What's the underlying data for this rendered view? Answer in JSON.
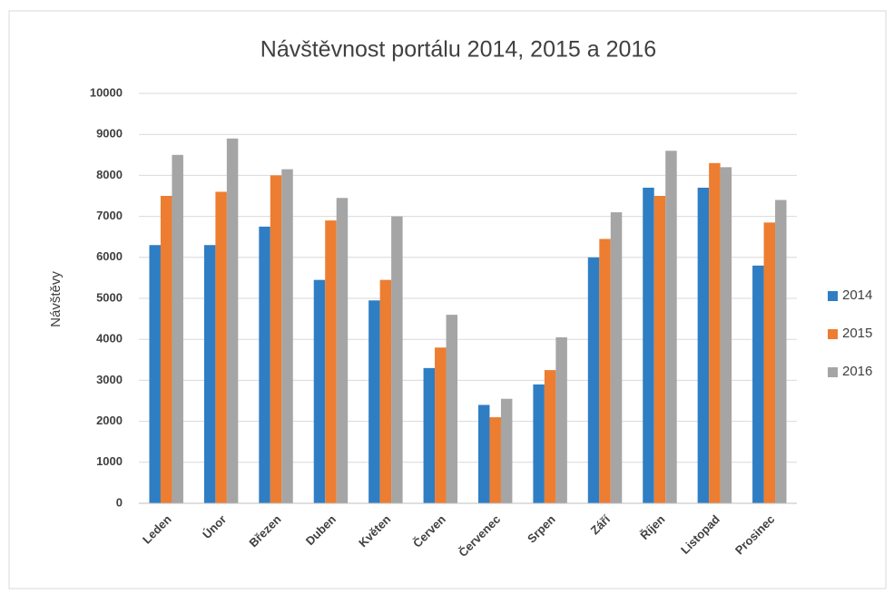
{
  "chart_data": {
    "type": "bar",
    "title": "Návštěvnost portálu 2014, 2015 a 2016",
    "y_label": "Návštěvy",
    "categories": [
      "Leden",
      "Únor",
      "Březen",
      "Duben",
      "Květen",
      "Červen",
      "Červenec",
      "Srpen",
      "Září",
      "Říjen",
      "Listopad",
      "Prosinec"
    ],
    "series": [
      {
        "name": "2014",
        "color": "#2f7ec4",
        "values": [
          6300,
          6300,
          6750,
          5450,
          4950,
          3300,
          2400,
          2900,
          6000,
          7700,
          7700,
          5800
        ]
      },
      {
        "name": "2015",
        "color": "#ed7d31",
        "values": [
          7500,
          7600,
          8000,
          6900,
          5450,
          3800,
          2100,
          3250,
          6450,
          7500,
          8300,
          6850
        ]
      },
      {
        "name": "2016",
        "color": "#a5a5a5",
        "values": [
          8500,
          8900,
          8150,
          7450,
          7000,
          4600,
          2550,
          4050,
          7100,
          8600,
          8200,
          7400
        ]
      }
    ],
    "ylim": [
      0,
      10000
    ],
    "yticks": [
      0,
      1000,
      2000,
      3000,
      4000,
      5000,
      6000,
      7000,
      8000,
      9000,
      10000
    ],
    "grid": true,
    "legend": "right"
  }
}
